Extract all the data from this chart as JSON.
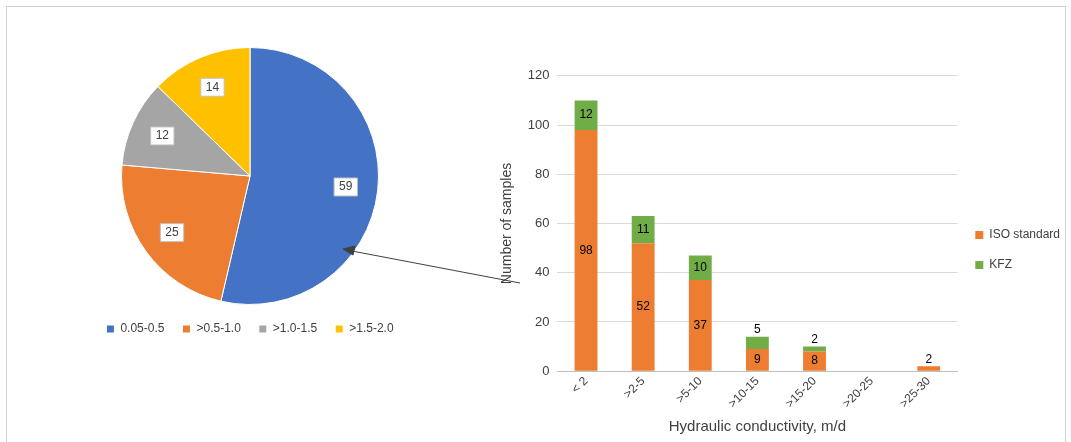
{
  "chart_data": [
    {
      "type": "pie",
      "categories": [
        "0.05-0.5",
        ">0.5-1.0",
        ">1.0-1.5",
        ">1.5-2.0"
      ],
      "values": [
        59,
        25,
        12,
        14
      ],
      "colors": [
        "#4472c4",
        "#ed7d31",
        "#a5a5a5",
        "#ffc000"
      ],
      "data_labels": true,
      "legend": "bottom"
    },
    {
      "type": "bar",
      "stacked": true,
      "xlabel": "Hydraulic conductivity, m/d",
      "ylabel": "Number of samples",
      "categories": [
        "< 2",
        ">2-5",
        ">5-10",
        ">10-15",
        ">15-20",
        ">20-25",
        ">25-30"
      ],
      "series": [
        {
          "name": "ISO standard",
          "color": "#ed7d31",
          "values": [
            98,
            52,
            37,
            9,
            8,
            null,
            2
          ]
        },
        {
          "name": "KFZ",
          "color": "#70ad47",
          "values": [
            12,
            11,
            10,
            5,
            2,
            null,
            null
          ]
        }
      ],
      "ylim": [
        0,
        120
      ],
      "yticks": [
        0,
        20,
        40,
        60,
        80,
        100,
        120
      ],
      "grid": "y",
      "legend": "right",
      "data_labels": true
    }
  ]
}
